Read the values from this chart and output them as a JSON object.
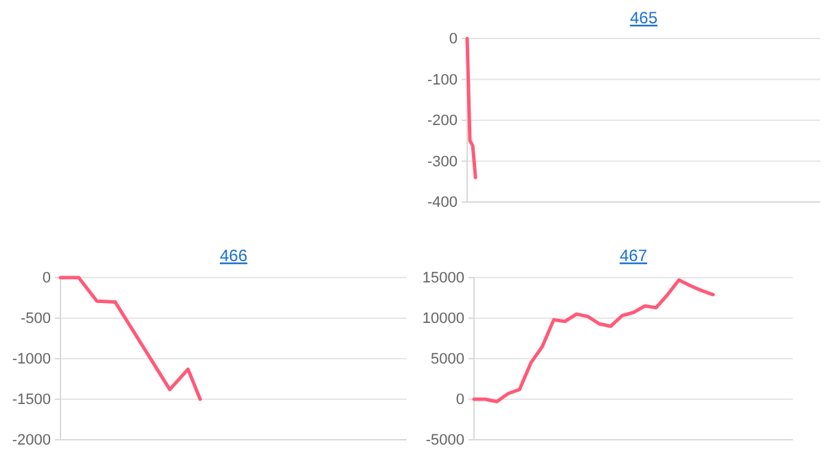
{
  "chart_data": [
    {
      "type": "line",
      "title": "465",
      "categories": [
        null,
        null,
        null,
        null,
        null,
        null,
        null,
        null,
        null,
        null,
        null,
        null,
        null,
        null,
        null,
        null,
        null,
        null,
        null,
        null,
        null,
        null,
        null,
        null,
        null,
        null,
        null,
        null,
        null,
        null,
        null,
        null,
        null,
        null,
        null,
        null,
        null,
        null,
        null,
        null,
        null,
        null,
        null,
        null,
        null,
        null,
        null,
        null,
        null,
        null,
        null,
        null,
        null,
        null,
        null,
        null,
        null,
        null,
        null,
        null,
        null,
        null,
        null,
        null,
        null,
        null,
        null,
        null,
        null,
        null,
        null,
        null,
        null,
        null,
        null,
        null,
        null,
        null,
        null,
        null,
        null,
        null,
        null,
        null,
        null,
        null,
        null,
        null,
        null,
        null,
        null,
        null,
        null,
        null,
        null,
        null,
        null,
        null,
        null,
        null,
        null,
        null,
        null,
        null,
        null,
        null,
        null,
        null,
        null,
        null,
        null,
        null,
        null,
        null,
        null,
        null,
        null,
        null,
        null,
        null,
        null,
        null,
        null,
        null,
        null,
        null,
        null,
        null
      ],
      "series": [
        {
          "color": "#ff5a78",
          "values": [
            0,
            -250,
            -262,
            -340,
            null,
            null,
            null,
            null,
            null,
            null,
            null,
            null,
            null,
            null,
            null,
            null,
            null,
            null,
            null,
            null,
            null,
            null,
            null,
            null,
            null,
            null,
            null,
            null,
            null,
            null,
            null,
            null,
            null,
            null,
            null,
            null,
            null,
            null,
            null,
            null,
            null,
            null,
            null,
            null,
            null,
            null,
            null,
            null,
            null,
            null,
            null,
            null,
            null,
            null,
            null,
            null,
            null,
            null,
            null,
            null,
            null,
            null,
            null,
            null,
            null,
            null,
            null,
            null,
            null,
            null,
            null,
            null,
            null,
            null,
            null,
            null,
            null,
            null,
            null,
            null,
            null,
            null,
            null,
            null,
            null,
            null,
            null,
            null,
            null,
            null,
            null,
            null,
            null,
            null,
            null,
            null,
            null,
            null,
            null,
            null,
            null,
            null,
            null,
            null,
            null,
            null,
            null,
            null,
            null,
            null,
            null,
            null,
            null,
            null,
            null,
            null,
            null,
            null,
            null,
            null,
            null,
            null,
            null,
            null,
            null,
            null,
            null,
            null
          ]
        }
      ],
      "ylim": [
        -400,
        0
      ],
      "yticks": [
        -400,
        -300,
        -200,
        -100,
        0
      ],
      "grid": "y",
      "tick_labels": "y",
      "marker": "none",
      "line_style": "solid"
    },
    {
      "type": "line",
      "title": "466",
      "categories": [
        null,
        null,
        null,
        null,
        null,
        null,
        null,
        null,
        null,
        null,
        null,
        null,
        null,
        null,
        null,
        null,
        null,
        null,
        null,
        null,
        null,
        null,
        null,
        null,
        null,
        null,
        null,
        null,
        null,
        null,
        null,
        null,
        null,
        null,
        null,
        null,
        null,
        null,
        null,
        null,
        null,
        null,
        null,
        null,
        null,
        null,
        null,
        null,
        null,
        null,
        null,
        null,
        null,
        null,
        null,
        null,
        null,
        null
      ],
      "series": [
        {
          "color": "#ff5a78",
          "values": [
            0,
            null,
            null,
            0,
            null,
            null,
            -290,
            null,
            null,
            -300,
            null,
            null,
            null,
            null,
            null,
            null,
            null,
            null,
            -1380,
            null,
            null,
            -1130,
            null,
            -1500,
            null,
            null,
            null,
            null,
            null,
            null,
            null,
            null,
            null,
            null,
            null,
            null,
            null,
            null,
            null,
            null,
            null,
            null,
            null,
            null,
            null,
            null,
            null,
            null,
            null,
            null,
            null,
            null,
            null,
            null,
            null,
            null,
            null,
            null
          ]
        }
      ],
      "ylim": [
        -2000,
        0
      ],
      "yticks": [
        -2000,
        -1500,
        -1000,
        -500,
        0
      ],
      "grid": "y",
      "tick_labels": "y",
      "marker": "none",
      "line_style": "solid"
    },
    {
      "type": "line",
      "title": "467",
      "categories": [
        null,
        null,
        null,
        null,
        null,
        null,
        null,
        null,
        null,
        null,
        null,
        null,
        null,
        null,
        null,
        null,
        null,
        null,
        null,
        null,
        null,
        null,
        null,
        null,
        null,
        null,
        null,
        null,
        null
      ],
      "series": [
        {
          "color": "#ff5a78",
          "values": [
            0,
            0,
            -300,
            700,
            1200,
            4500,
            6500,
            9800,
            9600,
            10500,
            10200,
            9300,
            9000,
            10300,
            10700,
            11500,
            11300,
            12900,
            14700,
            14000,
            13400,
            12900,
            null,
            null,
            null,
            null,
            null,
            null,
            null
          ]
        }
      ],
      "ylim": [
        -5000,
        15000
      ],
      "yticks": [
        -5000,
        0,
        5000,
        10000,
        15000
      ],
      "grid": "y",
      "tick_labels": "y",
      "marker": "none",
      "line_style": "solid"
    }
  ]
}
